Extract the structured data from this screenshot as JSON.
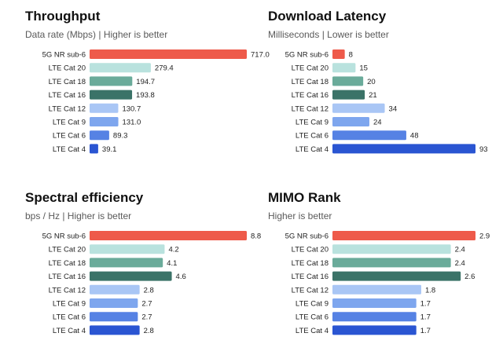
{
  "colors": {
    "5G NR sub-6": "#ee5a4a",
    "LTE Cat 20": "#b9e2de",
    "LTE Cat 18": "#6aab9a",
    "LTE Cat 16": "#3b7368",
    "LTE Cat 12": "#a9c6f5",
    "LTE Cat 9": "#7ea6ee",
    "LTE Cat 6": "#5682e4",
    "LTE Cat 4": "#2a55d2"
  },
  "chart_data": [
    {
      "type": "bar",
      "orientation": "horizontal",
      "title": "Throughput",
      "subtitle": "Data rate (Mbps) | Higher is better",
      "categories": [
        "5G NR sub-6",
        "LTE Cat 20",
        "LTE Cat 18",
        "LTE Cat 16",
        "LTE Cat 12",
        "LTE Cat 9",
        "LTE Cat 6",
        "LTE Cat 4"
      ],
      "values": [
        717.0,
        279.4,
        194.7,
        193.8,
        130.7,
        131.0,
        89.3,
        39.1
      ],
      "value_labels": [
        "717.0",
        "279.4",
        "194.7",
        "193.8",
        "130.7",
        "131.0",
        "89.3",
        "39.1"
      ],
      "xlim": [
        0,
        717.0
      ],
      "grid": false
    },
    {
      "type": "bar",
      "orientation": "horizontal",
      "title": "Download Latency",
      "subtitle": "Milliseconds | Lower is better",
      "categories": [
        "5G NR sub-6",
        "LTE Cat 20",
        "LTE Cat 18",
        "LTE Cat 16",
        "LTE Cat 12",
        "LTE Cat 9",
        "LTE Cat 6",
        "LTE Cat 4"
      ],
      "values": [
        8,
        15,
        20,
        21,
        34,
        24,
        48,
        93
      ],
      "value_labels": [
        "8",
        "15",
        "20",
        "21",
        "34",
        "24",
        "48",
        "93"
      ],
      "xlim": [
        0,
        93
      ],
      "grid": false
    },
    {
      "type": "bar",
      "orientation": "horizontal",
      "title": "Spectral efficiency",
      "subtitle": "bps / Hz | Higher is better",
      "categories": [
        "5G NR sub-6",
        "LTE Cat 20",
        "LTE Cat 18",
        "LTE Cat 16",
        "LTE Cat 12",
        "LTE Cat 9",
        "LTE Cat 6",
        "LTE Cat 4"
      ],
      "values": [
        8.8,
        4.2,
        4.1,
        4.6,
        2.8,
        2.7,
        2.7,
        2.8
      ],
      "value_labels": [
        "8.8",
        "4.2",
        "4.1",
        "4.6",
        "2.8",
        "2.7",
        "2.7",
        "2.8"
      ],
      "xlim": [
        0,
        8.8
      ],
      "grid": false
    },
    {
      "type": "bar",
      "orientation": "horizontal",
      "title": "MIMO Rank",
      "subtitle": "Higher is better",
      "categories": [
        "5G NR sub-6",
        "LTE Cat 20",
        "LTE Cat 18",
        "LTE Cat 16",
        "LTE Cat 12",
        "LTE Cat 9",
        "LTE Cat 6",
        "LTE Cat 4"
      ],
      "values": [
        2.9,
        2.4,
        2.4,
        2.6,
        1.8,
        1.7,
        1.7,
        1.7
      ],
      "value_labels": [
        "2.9",
        "2.4",
        "2.4",
        "2.6",
        "1.8",
        "1.7",
        "1.7",
        "1.7"
      ],
      "xlim": [
        0,
        2.9
      ],
      "grid": false
    }
  ]
}
